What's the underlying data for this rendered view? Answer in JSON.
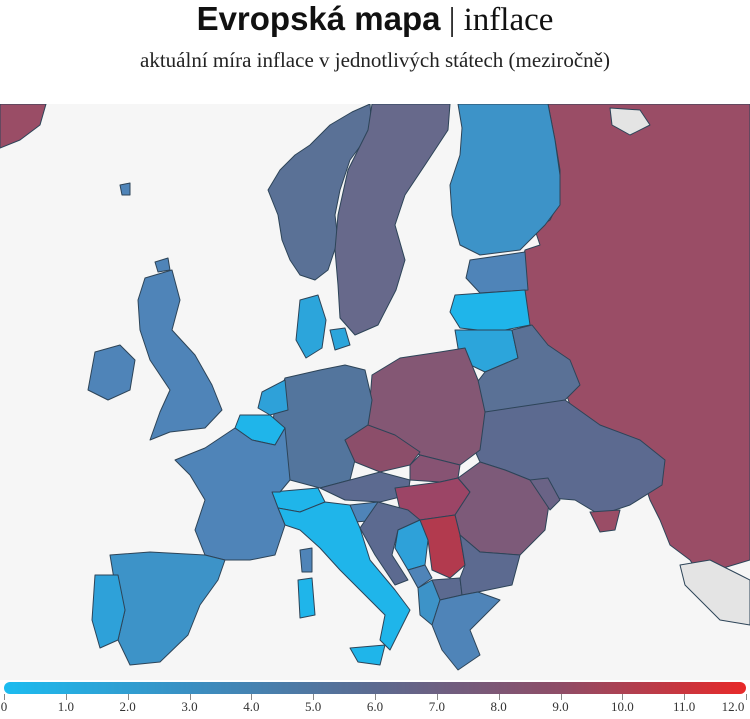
{
  "title_bold": "Evropská mapa",
  "title_separator": " | ",
  "title_light": "inflace",
  "subtitle": "aktuální míra inflace v jednotlivých státech (meziročně)",
  "colors": {
    "background": "#ffffff",
    "map_background": "#f6f6f6",
    "no_data": "#e4e4e4",
    "scale_low": "#1cbcf0",
    "scale_mid": "#5c6a90",
    "scale_high": "#e82a2a"
  },
  "legend": {
    "ticks": [
      "0",
      "1.0",
      "2.0",
      "3.0",
      "4.0",
      "5.0",
      "6.0",
      "7.0",
      "8.0",
      "9.0",
      "10.0",
      "11.0",
      "12.0"
    ]
  }
}
